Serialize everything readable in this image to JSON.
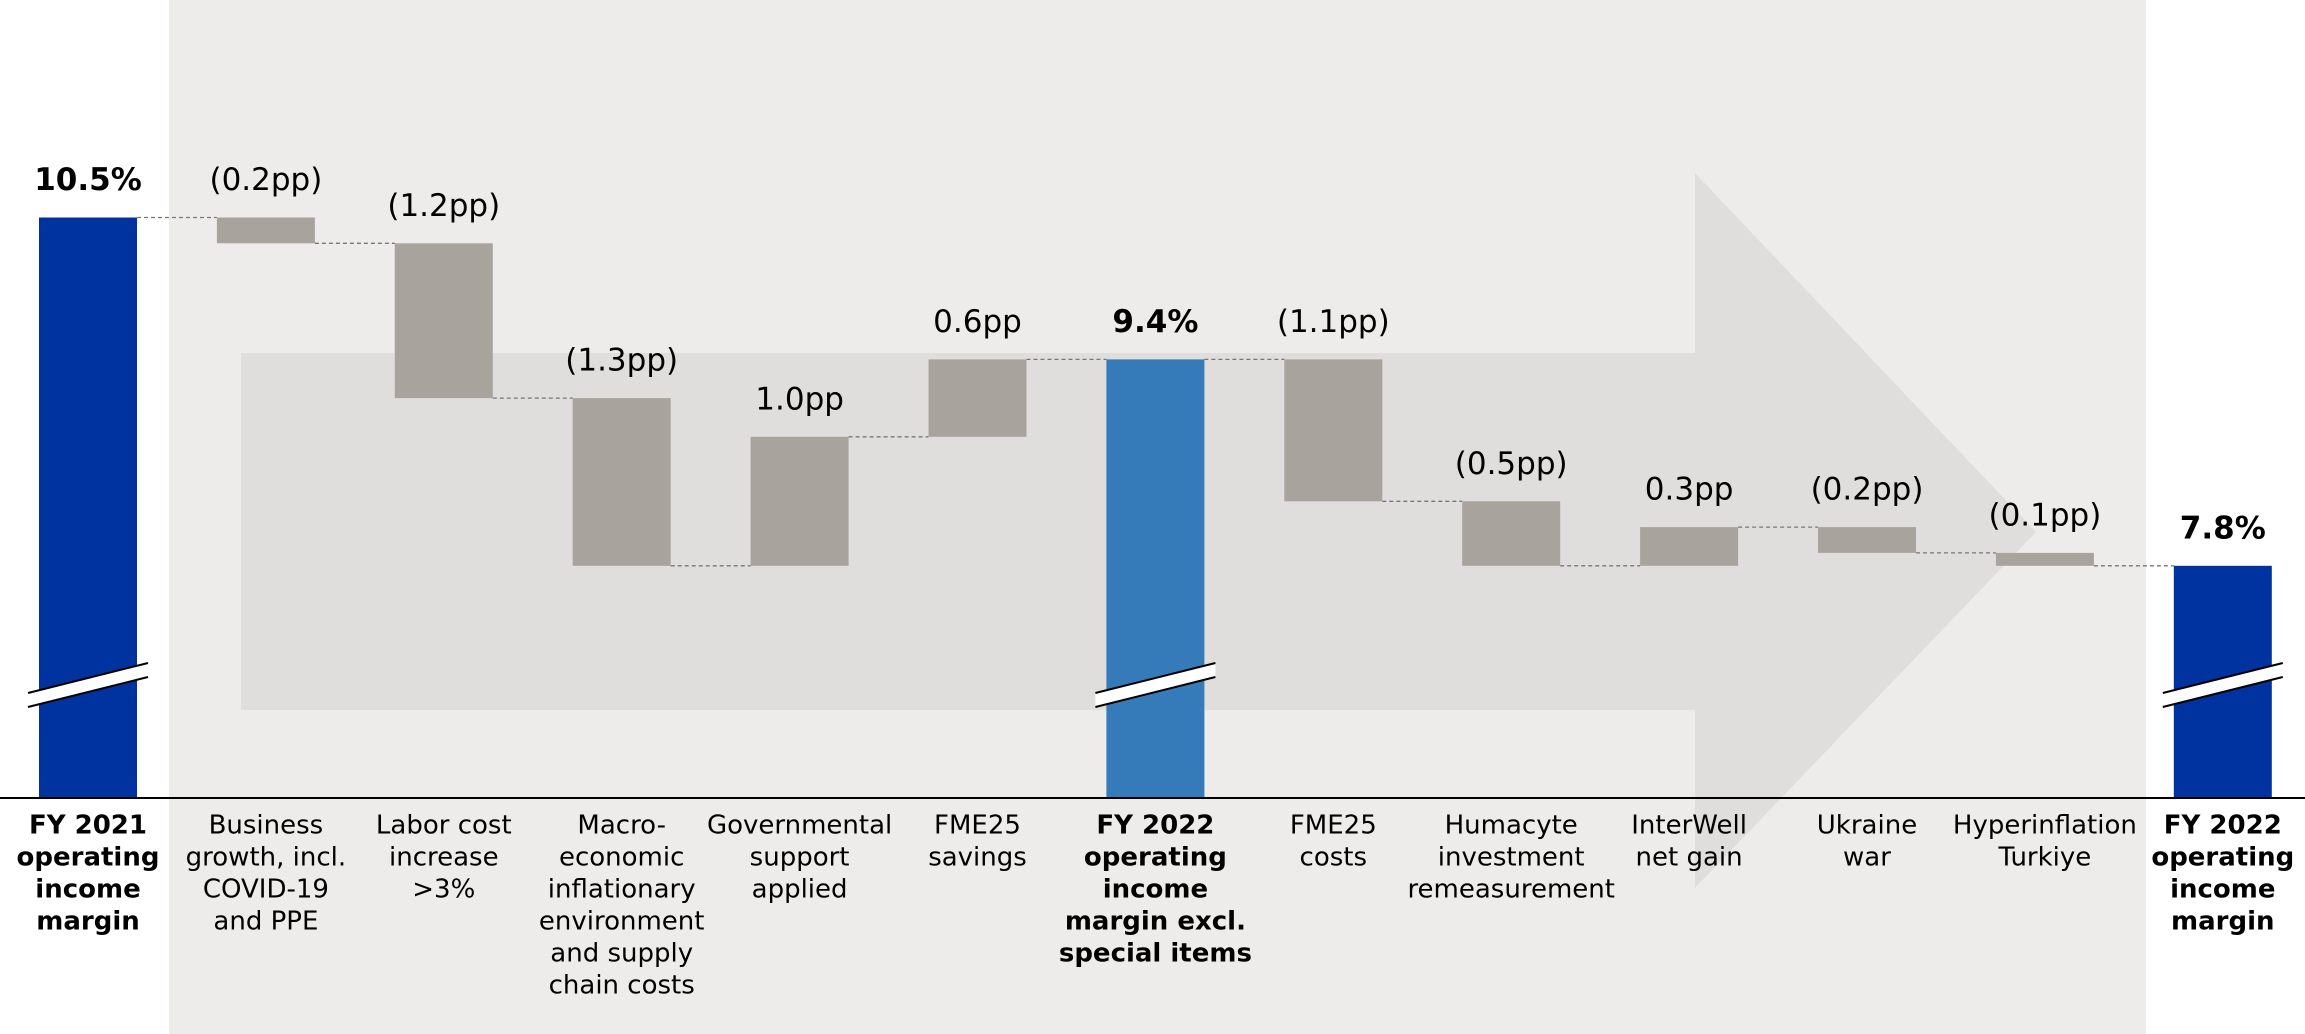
{
  "chart_data": {
    "type": "waterfall",
    "categories": [
      [
        "FY 2021",
        "operating",
        "income",
        "margin"
      ],
      [
        "Business",
        "growth, incl.",
        "COVID-19",
        "and PPE"
      ],
      [
        "Labor cost",
        "increase",
        ">3%"
      ],
      [
        "Macro-",
        "economic",
        "inflationary",
        "environment",
        "and supply",
        "chain costs"
      ],
      [
        "Governmental",
        "support",
        "applied"
      ],
      [
        "FME25",
        "savings"
      ],
      [
        "FY 2022",
        "operating",
        "income",
        "margin excl.",
        "special items"
      ],
      [
        "FME25",
        "costs"
      ],
      [
        "Humacyte",
        "investment",
        "remeasurement"
      ],
      [
        "InterWell",
        "net gain"
      ],
      [
        "Ukraine",
        "war"
      ],
      [
        "Hyperinflation",
        "Turkiye"
      ],
      [
        "FY 2022",
        "operating",
        "income",
        "margin"
      ]
    ],
    "measure": [
      "absolute",
      "relative",
      "relative",
      "relative",
      "relative",
      "relative",
      "absolute",
      "relative",
      "relative",
      "relative",
      "relative",
      "relative",
      "absolute"
    ],
    "values": [
      10.5,
      -0.2,
      -1.2,
      -1.3,
      1.0,
      0.6,
      9.4,
      -1.1,
      -0.5,
      0.3,
      -0.2,
      -0.1,
      7.8
    ],
    "value_labels": [
      "10.5%",
      "(0.2pp)",
      "(1.2pp)",
      "(1.3pp)",
      "1.0pp",
      "0.6pp",
      "9.4%",
      "(1.1pp)",
      "(0.5pp)",
      "0.3pp",
      "(0.2pp)",
      "(0.1pp)",
      "7.8%"
    ],
    "colors": [
      "#0033a0",
      "#a8a39d",
      "#a8a39d",
      "#a8a39d",
      "#a8a39d",
      "#a8a39d",
      "#367bb9",
      "#a8a39d",
      "#a8a39d",
      "#a8a39d",
      "#a8a39d",
      "#a8a39d",
      "#0033a0"
    ],
    "ylim": [
      6,
      12
    ],
    "axis_break": true
  }
}
